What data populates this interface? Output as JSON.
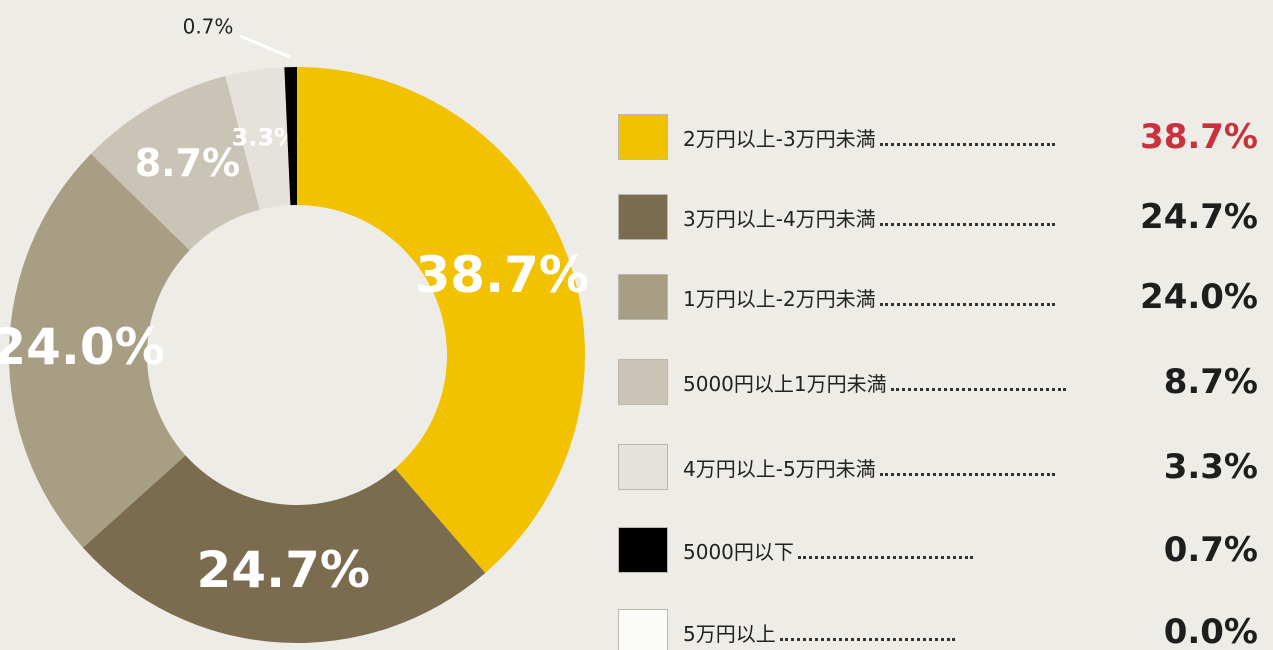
{
  "chart_data": {
    "type": "donut",
    "categories": [
      "2万円以上-3万円未満",
      "3万円以上-4万円未満",
      "1万円以上-2万円未満",
      "5000円以上1万円未満",
      "4万円以上-5万円未満",
      "5000円以下",
      "5万円以上"
    ],
    "values": [
      38.7,
      24.7,
      24.0,
      8.7,
      3.3,
      0.7,
      0.0
    ],
    "value_labels": [
      "38.7%",
      "24.7%",
      "24.0%",
      "8.7%",
      "3.3%",
      "0.7%",
      "0.0%"
    ],
    "colors": [
      "#f2c200",
      "#7b6b4f",
      "#a89e84",
      "#c9c4b6",
      "#e4e2db",
      "#000000",
      "#fbfbf9"
    ]
  }
}
